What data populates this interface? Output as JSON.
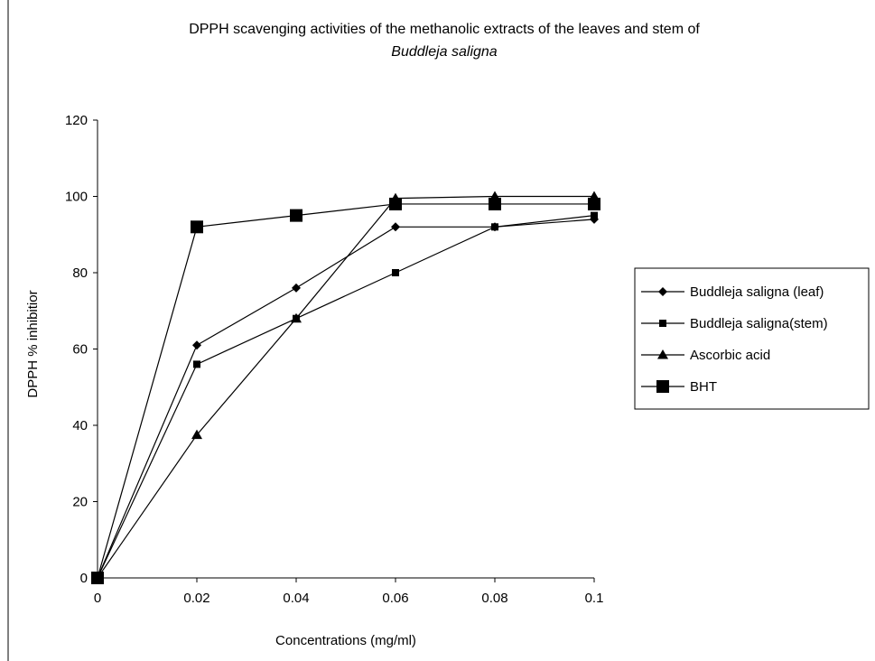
{
  "chart_data": {
    "type": "line",
    "title": "DPPH scavenging activities of the methanolic extracts of the leaves and stem of",
    "subtitle": "Buddleja saligna",
    "xlabel": "Concentrations (mg/ml)",
    "ylabel": "DPPH % inhibitior",
    "categories": [
      "0",
      "0.02",
      "0.04",
      "0.06",
      "0.08",
      "0.1"
    ],
    "ylim": [
      0,
      120
    ],
    "yticks": [
      "0",
      "20",
      "40",
      "60",
      "80",
      "100",
      "120"
    ],
    "grid": false,
    "legend_position": "right",
    "series": [
      {
        "name": "Buddleja saligna (leaf)",
        "marker": "diamond",
        "values": [
          0,
          61,
          76,
          92,
          92,
          94
        ]
      },
      {
        "name": "Buddleja saligna(stem)",
        "marker": "square",
        "values": [
          0,
          56,
          68,
          80,
          92,
          95
        ]
      },
      {
        "name": "Ascorbic acid",
        "marker": "triangle",
        "values": [
          0,
          37.5,
          68,
          99.5,
          100,
          100
        ]
      },
      {
        "name": "BHT",
        "marker": "big-square",
        "values": [
          0,
          92,
          95,
          98,
          98,
          98
        ]
      }
    ],
    "color": "#000000"
  }
}
